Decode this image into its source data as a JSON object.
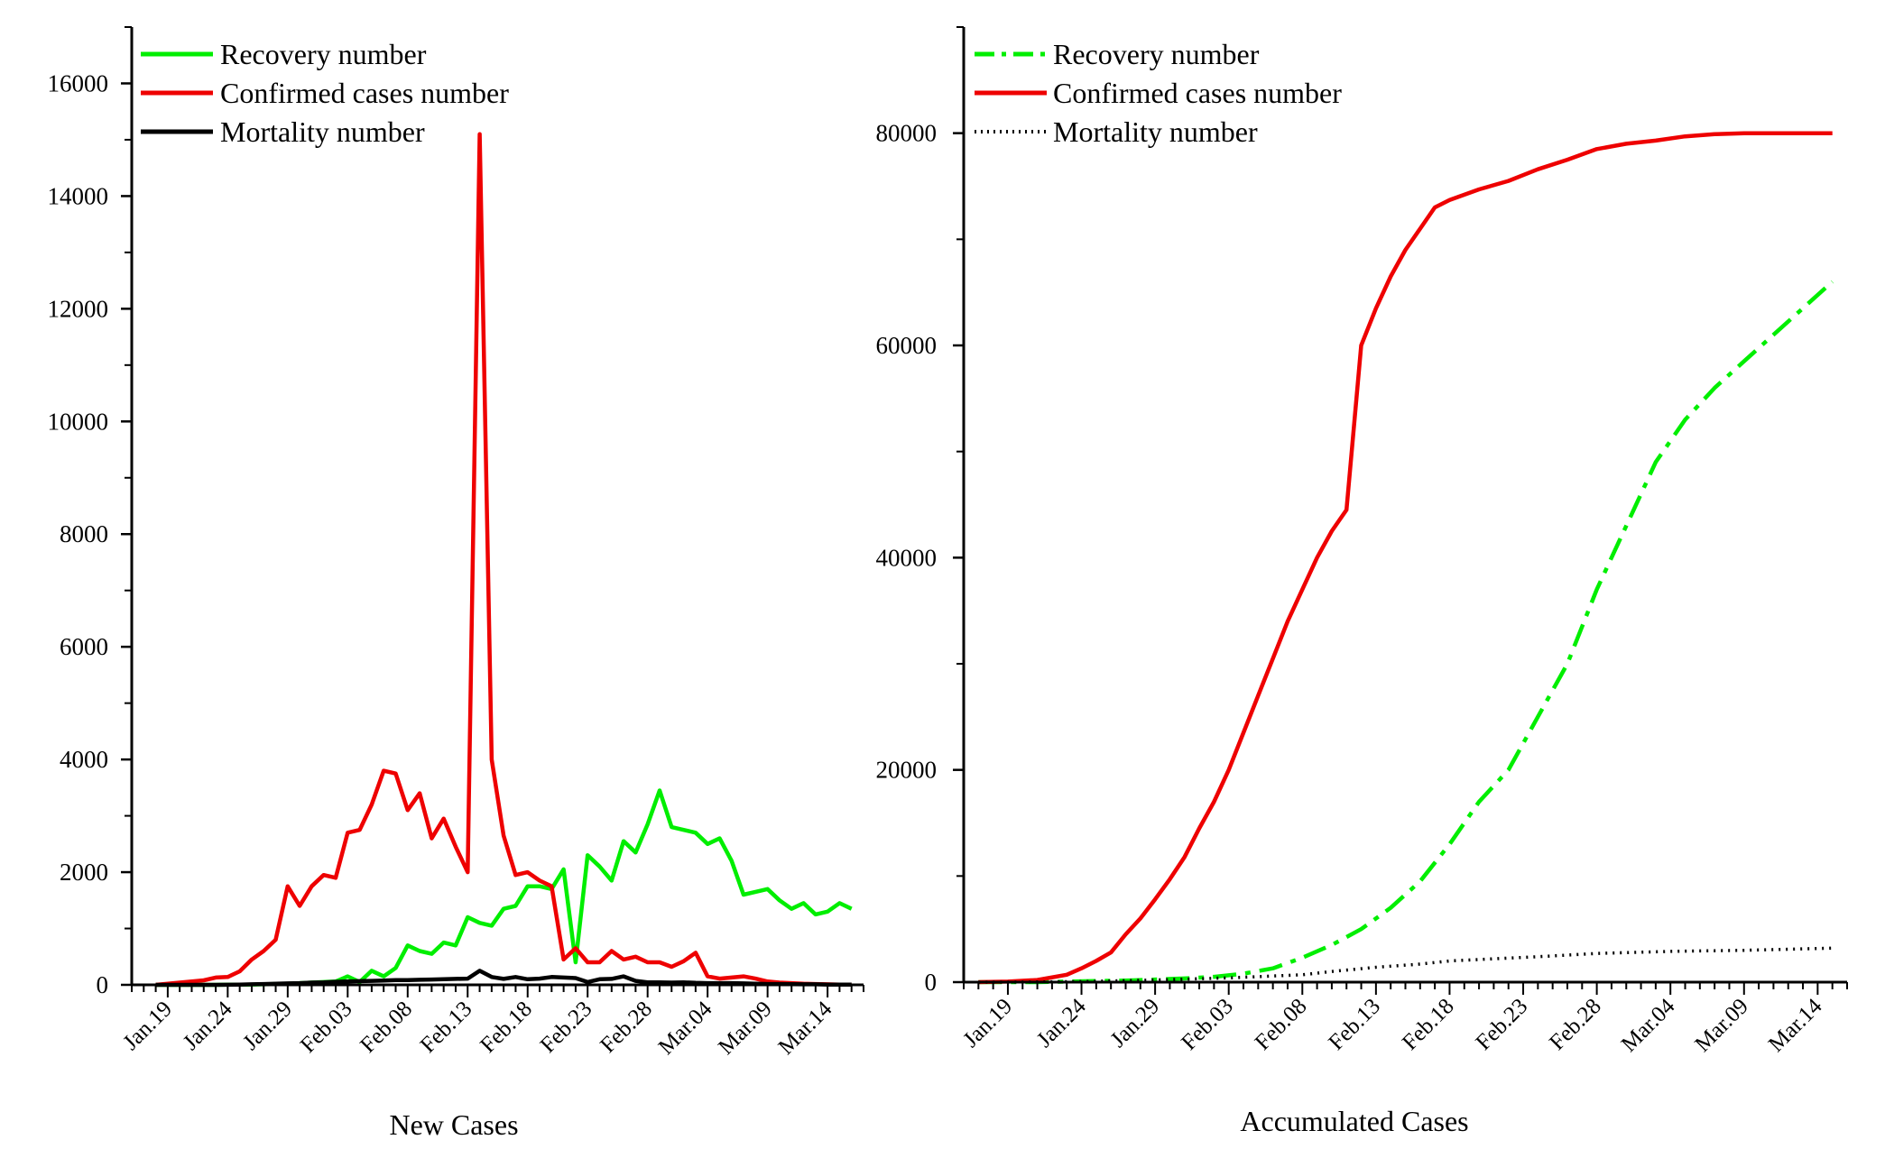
{
  "chart_data": [
    {
      "type": "line",
      "xlabel": "New Cases",
      "ylabel": "",
      "ylim": [
        0,
        17000
      ],
      "yticks": [
        0,
        2000,
        4000,
        6000,
        8000,
        10000,
        12000,
        14000,
        16000
      ],
      "ytick_labels": [
        "0",
        "2000",
        "4000",
        "6000",
        "8000",
        "10000",
        "12000",
        "14000",
        "16000"
      ],
      "day_range": [
        -3,
        58
      ],
      "x_ticks": [
        {
          "day": 0,
          "label": "Jan.19"
        },
        {
          "day": 5,
          "label": "Jan.24"
        },
        {
          "day": 10,
          "label": "Jan.29"
        },
        {
          "day": 15,
          "label": "Feb.03"
        },
        {
          "day": 20,
          "label": "Feb.08"
        },
        {
          "day": 25,
          "label": "Feb.13"
        },
        {
          "day": 30,
          "label": "Feb.18"
        },
        {
          "day": 35,
          "label": "Feb.23"
        },
        {
          "day": 40,
          "label": "Feb.28"
        },
        {
          "day": 45,
          "label": "Mar.04"
        },
        {
          "day": 50,
          "label": "Mar.09"
        },
        {
          "day": 55,
          "label": "Mar.14"
        }
      ],
      "legend_position": "top-left",
      "series": [
        {
          "name": "Recovery number",
          "color": "#00ee00",
          "style": "solid",
          "x": [
            -1,
            0,
            1,
            2,
            3,
            4,
            5,
            6,
            7,
            8,
            9,
            10,
            11,
            12,
            13,
            14,
            15,
            16,
            17,
            18,
            19,
            20,
            21,
            22,
            23,
            24,
            25,
            26,
            27,
            28,
            29,
            30,
            31,
            32,
            33,
            34,
            35,
            36,
            37,
            38,
            39,
            40,
            41,
            42,
            43,
            44,
            45,
            46,
            47,
            48,
            49,
            50,
            51,
            52,
            53,
            54,
            55,
            56,
            57
          ],
          "values": [
            0,
            0,
            0,
            0,
            0,
            0,
            3,
            5,
            5,
            10,
            15,
            20,
            30,
            40,
            50,
            60,
            150,
            50,
            250,
            150,
            300,
            700,
            600,
            550,
            750,
            700,
            1200,
            1100,
            1050,
            1350,
            1400,
            1750,
            1750,
            1700,
            2050,
            400,
            2300,
            2100,
            1850,
            2550,
            2350,
            2850,
            3450,
            2800,
            2750,
            2700,
            2500,
            2600,
            2200,
            1600,
            1650,
            1700,
            1500,
            1350,
            1450,
            1250,
            1300,
            1450,
            1350
          ]
        },
        {
          "name": "Confirmed cases number",
          "color": "#ee0000",
          "style": "solid",
          "x": [
            -1,
            0,
            1,
            2,
            3,
            4,
            5,
            6,
            7,
            8,
            9,
            10,
            11,
            12,
            13,
            14,
            15,
            16,
            17,
            18,
            19,
            20,
            21,
            22,
            23,
            24,
            25,
            26,
            27,
            28,
            29,
            30,
            31,
            32,
            33,
            34,
            35,
            36,
            37,
            38,
            39,
            40,
            41,
            42,
            43,
            44,
            45,
            46,
            47,
            48,
            49,
            50,
            51,
            52,
            53,
            54,
            55,
            56,
            57
          ],
          "values": [
            0,
            20,
            40,
            60,
            80,
            130,
            140,
            240,
            450,
            600,
            800,
            1750,
            1400,
            1750,
            1950,
            1900,
            2700,
            2750,
            3200,
            3800,
            3750,
            3100,
            3400,
            2600,
            2950,
            2450,
            2000,
            15100,
            4000,
            2650,
            1950,
            2000,
            1850,
            1750,
            450,
            650,
            400,
            400,
            600,
            450,
            500,
            400,
            400,
            320,
            420,
            570,
            150,
            110,
            130,
            150,
            110,
            60,
            40,
            30,
            20,
            15,
            10,
            5,
            5
          ]
        },
        {
          "name": "Mortality number",
          "color": "#000000",
          "style": "solid",
          "x": [
            -1,
            0,
            1,
            2,
            3,
            4,
            5,
            6,
            7,
            8,
            9,
            10,
            11,
            12,
            13,
            14,
            15,
            16,
            17,
            18,
            19,
            20,
            21,
            22,
            23,
            24,
            25,
            26,
            27,
            28,
            29,
            30,
            31,
            32,
            33,
            34,
            35,
            36,
            37,
            38,
            39,
            40,
            41,
            42,
            43,
            44,
            45,
            46,
            47,
            48,
            49,
            50,
            51,
            52,
            53,
            54,
            55,
            56,
            57
          ],
          "values": [
            0,
            0,
            0,
            0,
            0,
            0,
            2,
            5,
            10,
            15,
            20,
            25,
            30,
            40,
            45,
            55,
            60,
            65,
            70,
            75,
            85,
            85,
            90,
            95,
            100,
            105,
            110,
            250,
            140,
            105,
            140,
            100,
            110,
            140,
            130,
            120,
            50,
            100,
            105,
            150,
            70,
            45,
            45,
            40,
            45,
            35,
            30,
            30,
            30,
            25,
            20,
            15,
            15,
            12,
            10,
            10,
            5,
            5,
            5
          ]
        }
      ]
    },
    {
      "type": "line",
      "xlabel": "Accumulated Cases",
      "ylabel": "",
      "ylim": [
        0,
        90000
      ],
      "yticks": [
        0,
        20000,
        40000,
        60000,
        80000
      ],
      "ytick_labels": [
        "0",
        "20000",
        "40000",
        "60000",
        "80000"
      ],
      "minor_yticks": [
        10000,
        30000,
        50000,
        70000,
        90000
      ],
      "day_range": [
        -3,
        57
      ],
      "x_ticks": [
        {
          "day": 0,
          "label": "Jan.19"
        },
        {
          "day": 5,
          "label": "Jan.24"
        },
        {
          "day": 10,
          "label": "Jan.29"
        },
        {
          "day": 15,
          "label": "Feb.03"
        },
        {
          "day": 20,
          "label": "Feb.08"
        },
        {
          "day": 25,
          "label": "Feb.13"
        },
        {
          "day": 30,
          "label": "Feb.18"
        },
        {
          "day": 35,
          "label": "Feb.23"
        },
        {
          "day": 40,
          "label": "Feb.28"
        },
        {
          "day": 45,
          "label": "Mar.04"
        },
        {
          "day": 50,
          "label": "Mar.09"
        },
        {
          "day": 55,
          "label": "Mar.14"
        }
      ],
      "legend_position": "top-left",
      "series": [
        {
          "name": "Recovery number",
          "color": "#00ee00",
          "style": "dashdot",
          "x": [
            -2,
            0,
            2,
            4,
            6,
            8,
            10,
            12,
            14,
            16,
            18,
            20,
            22,
            24,
            26,
            28,
            30,
            32,
            34,
            36,
            38,
            40,
            42,
            44,
            46,
            48,
            50,
            52,
            54,
            56
          ],
          "values": [
            0,
            0,
            0,
            50,
            100,
            150,
            250,
            350,
            500,
            800,
            1300,
            2300,
            3500,
            5000,
            7000,
            9500,
            13000,
            17000,
            20000,
            25000,
            30000,
            37000,
            43000,
            49000,
            53000,
            56000,
            58500,
            61000,
            63500,
            66000
          ]
        },
        {
          "name": "Confirmed cases number",
          "color": "#ee0000",
          "style": "solid",
          "x": [
            -2,
            0,
            2,
            4,
            5,
            6,
            7,
            8,
            9,
            10,
            11,
            12,
            13,
            14,
            15,
            16,
            17,
            18,
            19,
            20,
            21,
            22,
            23,
            24,
            25,
            26,
            27,
            28,
            29,
            30,
            32,
            34,
            36,
            38,
            40,
            42,
            44,
            46,
            48,
            50,
            52,
            54,
            56
          ],
          "values": [
            0,
            50,
            200,
            700,
            1300,
            2000,
            2800,
            4500,
            6000,
            7800,
            9700,
            11800,
            14500,
            17000,
            20000,
            23500,
            27000,
            30500,
            34000,
            37000,
            40000,
            42500,
            44500,
            60000,
            63500,
            66500,
            69000,
            71000,
            73000,
            73700,
            74700,
            75500,
            76600,
            77500,
            78500,
            79000,
            79300,
            79700,
            79900,
            80000,
            80000,
            80000,
            80000
          ]
        },
        {
          "name": "Mortality number",
          "color": "#000000",
          "style": "dotted",
          "x": [
            -2,
            0,
            5,
            10,
            15,
            20,
            22,
            25,
            28,
            30,
            33,
            36,
            40,
            45,
            50,
            56
          ],
          "values": [
            0,
            0,
            50,
            200,
            400,
            700,
            1000,
            1400,
            1700,
            2000,
            2200,
            2400,
            2700,
            2900,
            3000,
            3200
          ]
        }
      ]
    }
  ]
}
